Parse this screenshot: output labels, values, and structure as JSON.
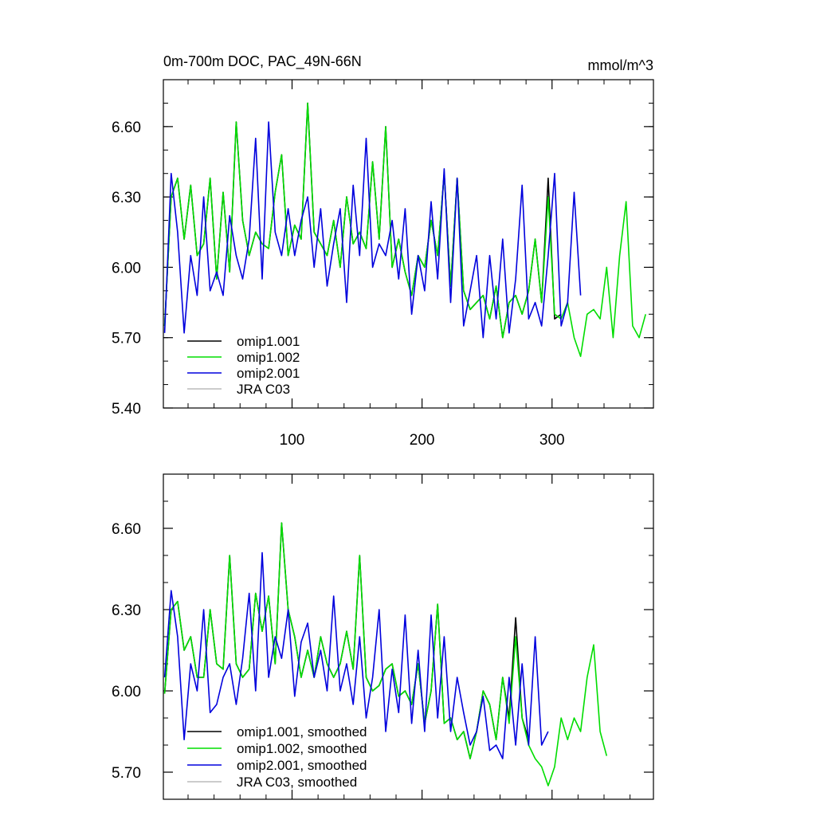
{
  "chart_data": [
    {
      "type": "line",
      "title": "0m-700m DOC, PAC_49N-66N",
      "units": "mmol/m^3",
      "xlabel": "",
      "ylabel": "",
      "xlim": [
        1,
        378
      ],
      "ylim": [
        5.4,
        6.8
      ],
      "xticks": [
        100,
        200,
        300
      ],
      "yticks": [
        5.4,
        5.7,
        6.0,
        6.3,
        6.6
      ],
      "ytick_labels": [
        "5.40",
        "5.70",
        "6.00",
        "6.30",
        "6.60"
      ],
      "legend_position": "bottom-left",
      "series": [
        {
          "name": "omip1.001",
          "color": "#000000",
          "x_start": 2,
          "x_step": 5,
          "values": [
            5.75,
            6.3,
            6.38,
            6.12,
            6.35,
            6.05,
            6.1,
            6.38,
            5.95,
            6.32,
            5.98,
            6.62,
            6.2,
            6.05,
            6.15,
            6.1,
            6.08,
            6.32,
            6.48,
            6.05,
            6.18,
            6.12,
            6.7,
            6.15,
            6.1,
            6.05,
            6.2,
            6.0,
            6.3,
            6.1,
            6.15,
            6.08,
            6.45,
            6.12,
            6.6,
            6.0,
            6.12,
            5.98,
            5.88,
            6.05,
            6.0,
            6.2,
            6.05,
            6.4,
            5.92,
            6.38,
            5.9,
            5.82,
            5.85,
            5.88,
            5.78,
            5.92,
            5.7,
            5.85,
            5.88,
            5.8,
            5.9,
            6.12,
            5.85,
            6.38,
            5.78,
            5.8
          ]
        },
        {
          "name": "omip1.002",
          "color": "#00dd00",
          "x_start": 2,
          "x_step": 5,
          "values": [
            5.75,
            6.3,
            6.38,
            6.12,
            6.35,
            6.05,
            6.1,
            6.38,
            5.95,
            6.32,
            5.98,
            6.62,
            6.2,
            6.05,
            6.15,
            6.1,
            6.08,
            6.32,
            6.48,
            6.05,
            6.18,
            6.12,
            6.7,
            6.15,
            6.1,
            6.05,
            6.2,
            6.0,
            6.3,
            6.1,
            6.15,
            6.08,
            6.45,
            6.12,
            6.6,
            6.0,
            6.12,
            5.98,
            5.88,
            6.05,
            6.0,
            6.2,
            6.05,
            6.4,
            5.92,
            6.38,
            5.9,
            5.82,
            5.85,
            5.88,
            5.78,
            5.92,
            5.7,
            5.85,
            5.88,
            5.8,
            5.9,
            6.12,
            5.85,
            6.3,
            5.8,
            5.78,
            5.85,
            5.7,
            5.62,
            5.8,
            5.82,
            5.78,
            6.0,
            5.7,
            6.05,
            6.28,
            5.75,
            5.7,
            5.8
          ]
        },
        {
          "name": "omip2.001",
          "color": "#0000dd",
          "x_start": 2,
          "x_step": 5,
          "values": [
            5.72,
            6.4,
            6.15,
            5.72,
            6.05,
            5.88,
            6.3,
            5.9,
            5.98,
            5.88,
            6.22,
            6.05,
            5.95,
            6.12,
            6.55,
            5.95,
            6.62,
            6.15,
            6.05,
            6.25,
            6.05,
            6.2,
            6.3,
            6.0,
            6.25,
            5.92,
            6.1,
            6.25,
            5.85,
            6.35,
            6.05,
            6.55,
            6.0,
            6.1,
            6.05,
            6.2,
            5.95,
            6.25,
            5.8,
            6.05,
            5.9,
            6.28,
            5.95,
            6.42,
            5.85,
            6.38,
            5.75,
            5.9,
            6.05,
            5.7,
            6.05,
            5.78,
            6.12,
            5.72,
            5.95,
            6.35,
            5.78,
            5.85,
            5.75,
            6.05,
            6.4,
            5.75,
            5.85,
            6.32,
            5.88
          ]
        },
        {
          "name": "JRA C03",
          "color": "#bbbbbb",
          "x_start": 2,
          "x_step": 5,
          "values": []
        }
      ]
    },
    {
      "type": "line",
      "title": "",
      "xlabel": "",
      "ylabel": "",
      "xlim": [
        1,
        378
      ],
      "ylim": [
        5.6,
        6.8
      ],
      "xticks": [
        100,
        200,
        300
      ],
      "yticks": [
        5.7,
        6.0,
        6.3,
        6.6
      ],
      "ytick_labels": [
        "5.70",
        "6.00",
        "6.30",
        "6.60"
      ],
      "legend_position": "bottom-left",
      "series": [
        {
          "name": "omip1.001, smoothed",
          "color": "#000000",
          "x_start": 2,
          "x_step": 5,
          "values": [
            5.99,
            6.3,
            6.33,
            6.15,
            6.2,
            6.05,
            6.05,
            6.3,
            6.1,
            6.08,
            6.5,
            6.1,
            6.05,
            6.08,
            6.36,
            6.22,
            6.35,
            6.1,
            6.62,
            6.3,
            6.2,
            6.05,
            6.15,
            6.05,
            6.2,
            6.1,
            6.05,
            6.1,
            6.22,
            6.08,
            6.5,
            6.05,
            6.0,
            6.02,
            6.08,
            6.1,
            5.98,
            6.0,
            5.95,
            6.1,
            5.88,
            6.0,
            6.32,
            5.88,
            5.9,
            5.82,
            5.85,
            5.75,
            5.85,
            6.0,
            5.95,
            5.82,
            6.05,
            5.9,
            6.27,
            5.9,
            5.82
          ]
        },
        {
          "name": "omip1.002, smoothed",
          "color": "#00dd00",
          "x_start": 2,
          "x_step": 5,
          "values": [
            5.99,
            6.3,
            6.33,
            6.15,
            6.2,
            6.05,
            6.05,
            6.3,
            6.1,
            6.08,
            6.5,
            6.1,
            6.05,
            6.08,
            6.36,
            6.22,
            6.35,
            6.1,
            6.62,
            6.3,
            6.2,
            6.05,
            6.15,
            6.05,
            6.2,
            6.1,
            6.05,
            6.1,
            6.22,
            6.08,
            6.5,
            6.05,
            6.0,
            6.02,
            6.08,
            6.1,
            5.98,
            6.0,
            5.95,
            6.1,
            5.88,
            6.0,
            6.32,
            5.88,
            5.9,
            5.82,
            5.85,
            5.75,
            5.85,
            6.0,
            5.95,
            5.82,
            6.05,
            5.88,
            6.2,
            5.9,
            5.8,
            5.75,
            5.72,
            5.65,
            5.72,
            5.9,
            5.82,
            5.9,
            5.85,
            6.05,
            6.17,
            5.85,
            5.76
          ]
        },
        {
          "name": "omip2.001, smoothed",
          "color": "#0000dd",
          "x_start": 2,
          "x_step": 5,
          "values": [
            6.05,
            6.37,
            6.2,
            5.82,
            6.1,
            6.0,
            6.3,
            5.92,
            5.95,
            6.05,
            6.1,
            5.95,
            6.12,
            6.36,
            6.0,
            6.51,
            6.05,
            6.2,
            6.12,
            6.3,
            5.98,
            6.18,
            6.25,
            6.05,
            6.15,
            6.0,
            6.35,
            6.0,
            6.1,
            5.95,
            6.2,
            5.9,
            6.05,
            6.3,
            5.85,
            6.08,
            5.92,
            6.28,
            5.88,
            6.15,
            5.85,
            6.28,
            5.9,
            6.2,
            5.85,
            6.05,
            5.92,
            5.8,
            5.85,
            5.98,
            5.78,
            5.8,
            5.75,
            6.05,
            5.8,
            6.1,
            5.8,
            6.2,
            5.8,
            5.85
          ]
        },
        {
          "name": "JRA C03, smoothed",
          "color": "#bbbbbb",
          "x_start": 2,
          "x_step": 5,
          "values": []
        }
      ]
    }
  ]
}
